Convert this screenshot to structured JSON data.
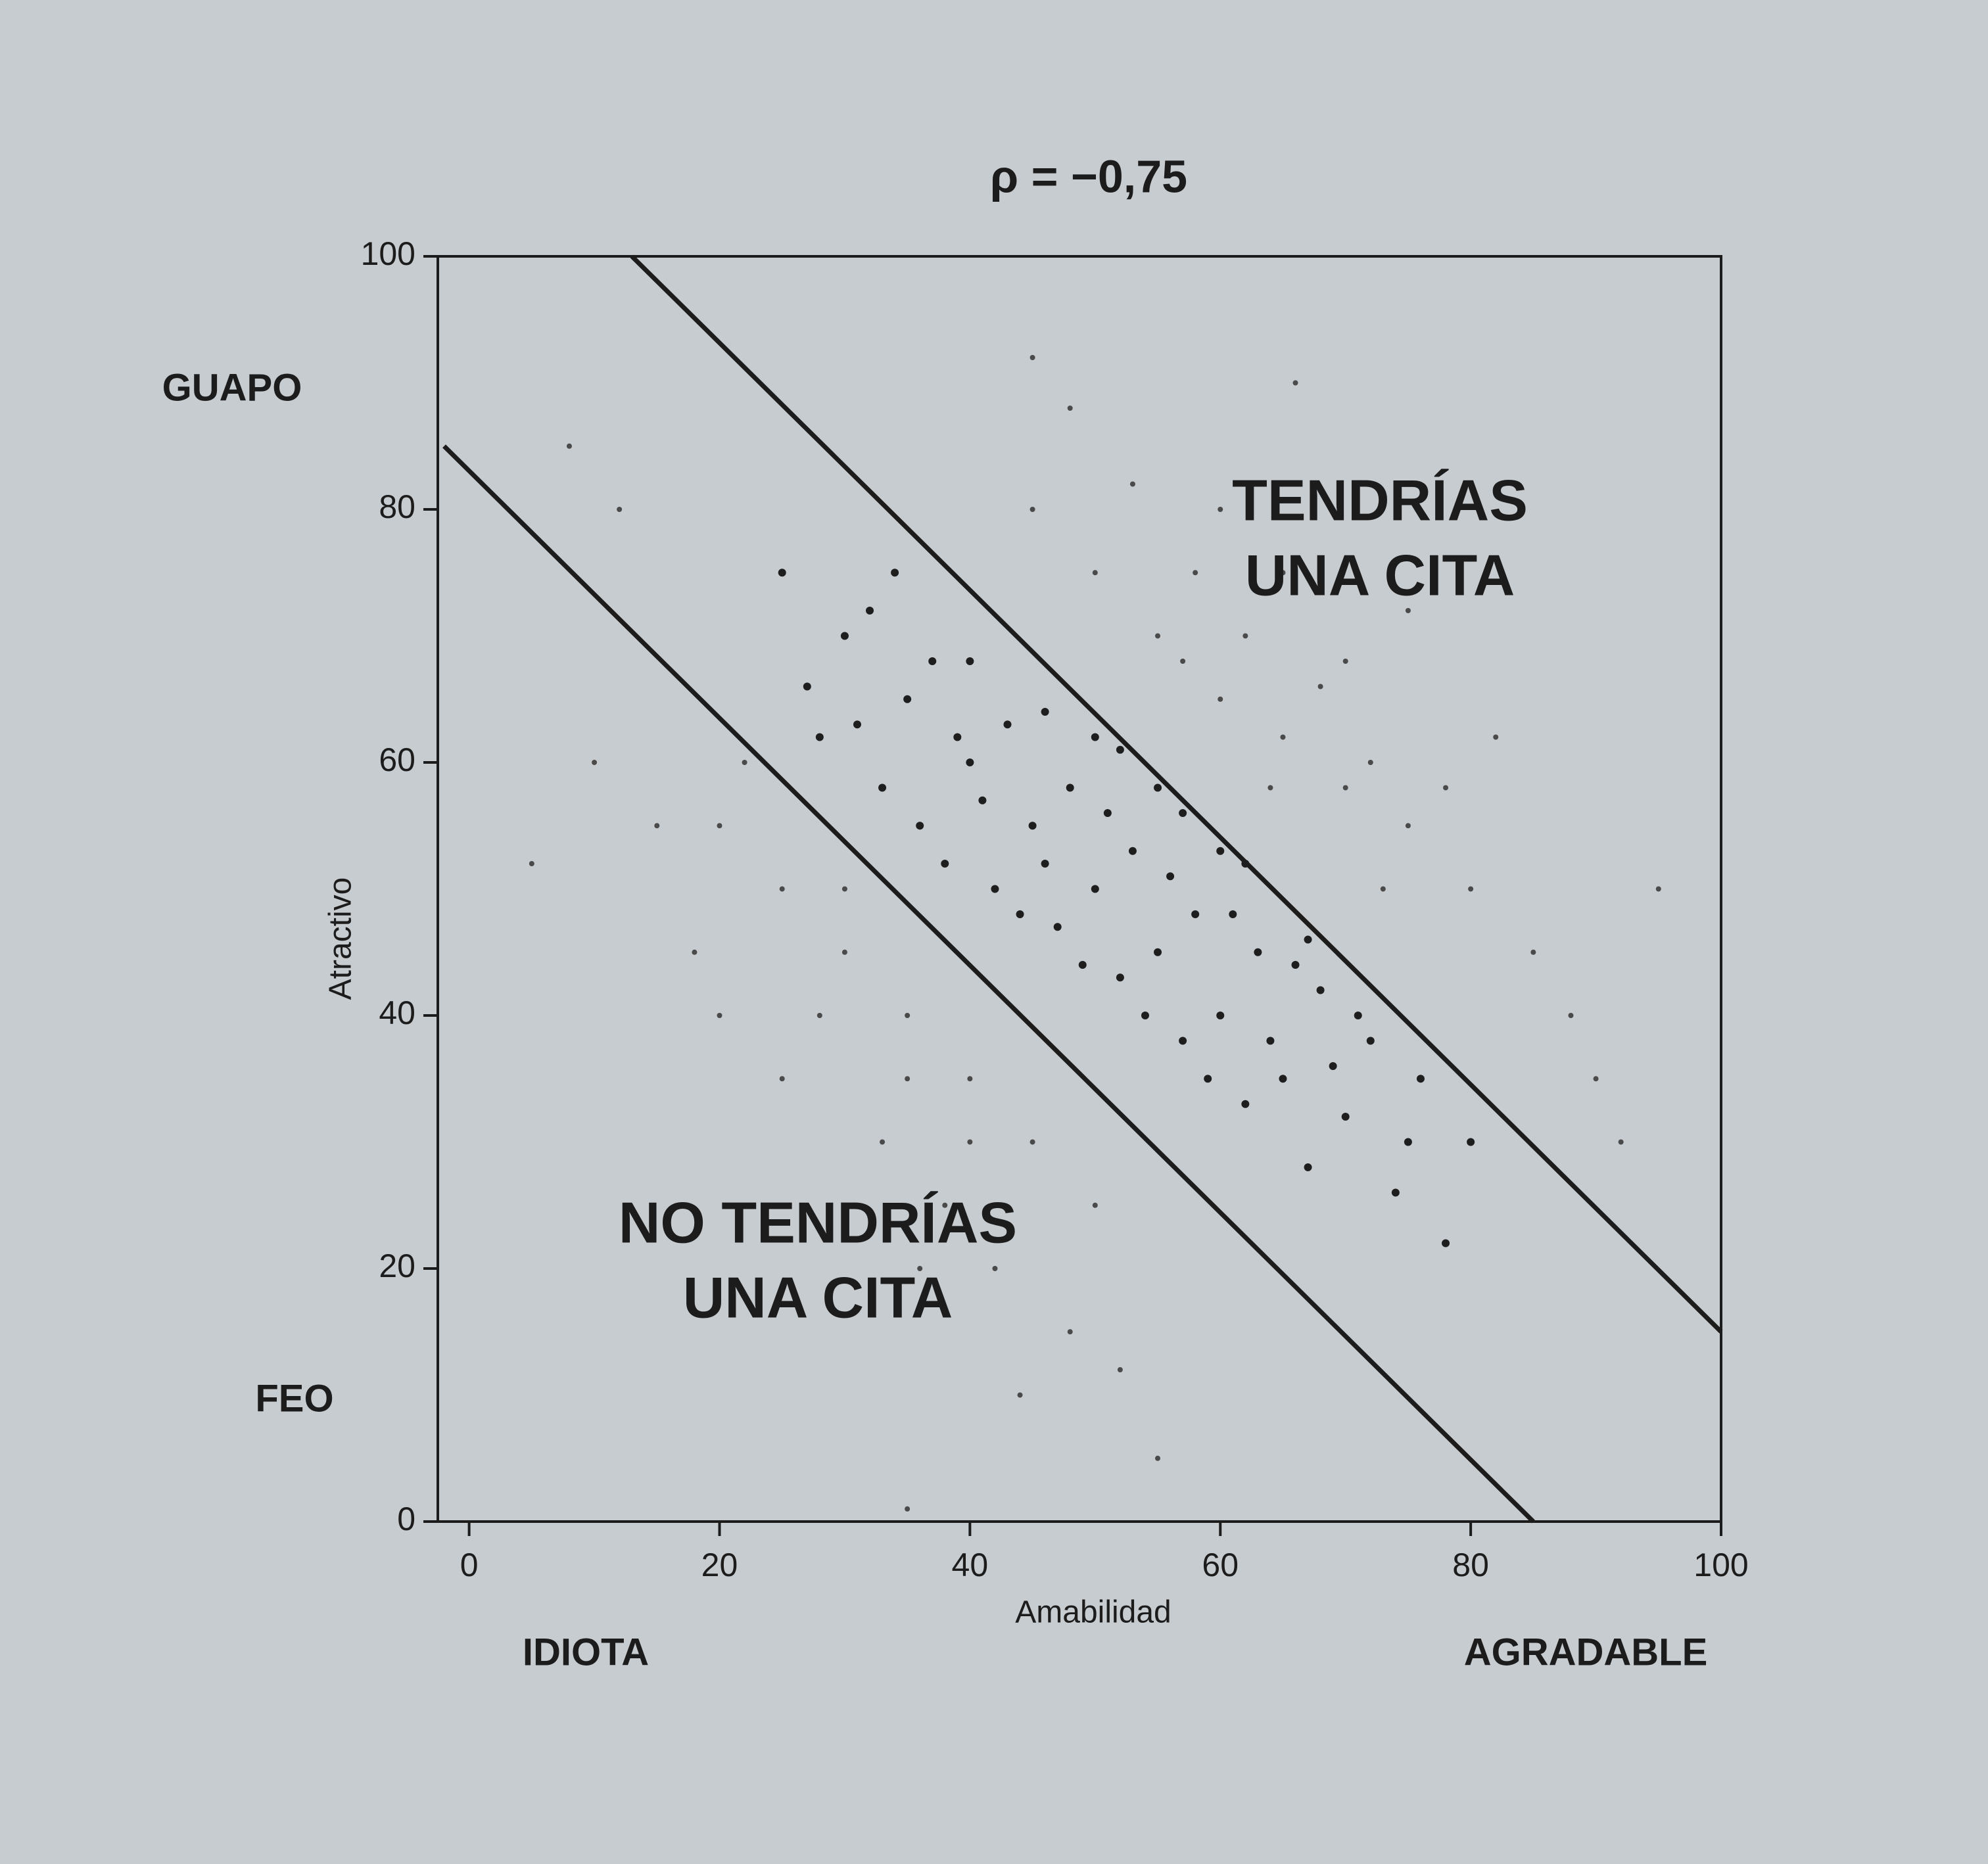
{
  "chart_data": {
    "type": "scatter",
    "title": "ρ = −0,75",
    "x_label": "Amabilidad",
    "y_label": "Atractivo",
    "xlim": [
      -2.5,
      100
    ],
    "ylim": [
      0,
      100
    ],
    "xticks": [
      0,
      20,
      40,
      60,
      80,
      100
    ],
    "yticks": [
      0,
      20,
      40,
      60,
      80,
      100
    ],
    "axis_annotations": {
      "y_high": "GUAPO",
      "y_low": "FEO",
      "x_low": "IDIOTA",
      "x_high": "AGRADABLE"
    },
    "region_labels": [
      [
        "TENDRÍAS",
        "UNA CITA"
      ],
      [
        "NO TENDRÍAS",
        "UNA CITA"
      ]
    ],
    "lines": [
      {
        "x": [
          13,
          100
        ],
        "y": [
          100,
          15
        ]
      },
      {
        "x": [
          -2,
          85
        ],
        "y": [
          85,
          0
        ]
      }
    ],
    "series": [
      {
        "color": "#1e1e1e",
        "x": [
          30,
          35,
          40,
          45,
          50,
          55,
          60,
          65,
          28,
          33,
          38,
          42,
          47,
          52,
          57,
          62,
          67,
          25,
          32,
          37,
          43,
          48,
          53,
          58,
          63,
          68,
          72,
          36,
          41,
          46,
          51,
          56,
          61,
          66,
          70,
          75,
          27,
          31,
          39,
          44,
          49,
          54,
          59,
          64,
          69,
          74,
          78,
          34,
          40,
          46,
          52,
          57,
          62,
          67,
          71,
          76,
          80,
          55,
          60,
          50
        ],
        "values": [
          70,
          65,
          60,
          55,
          50,
          45,
          40,
          35,
          62,
          58,
          52,
          50,
          47,
          43,
          38,
          33,
          28,
          75,
          72,
          68,
          63,
          58,
          53,
          48,
          45,
          42,
          38,
          55,
          57,
          52,
          56,
          51,
          48,
          44,
          32,
          30,
          66,
          63,
          62,
          48,
          44,
          40,
          35,
          38,
          36,
          26,
          22,
          75,
          68,
          64,
          61,
          56,
          52,
          46,
          40,
          35,
          30,
          58,
          53,
          62
        ]
      },
      {
        "color": "#4a4a4a",
        "x": [
          60,
          65,
          70,
          55,
          50,
          45,
          62,
          68,
          72,
          75,
          58,
          53,
          48,
          65,
          70,
          80,
          85,
          78,
          60,
          45,
          88,
          90,
          75,
          82,
          57,
          64,
          73,
          66,
          92,
          95,
          20,
          25,
          30,
          35,
          40,
          45,
          50,
          30,
          35,
          40,
          22,
          28,
          33,
          38,
          42,
          48,
          15,
          10,
          18,
          25,
          30,
          36,
          44,
          52,
          12,
          8,
          5,
          55,
          35,
          20
        ],
        "values": [
          65,
          62,
          58,
          70,
          75,
          80,
          70,
          66,
          60,
          55,
          75,
          82,
          88,
          75,
          68,
          50,
          45,
          58,
          80,
          92,
          40,
          35,
          72,
          62,
          68,
          58,
          50,
          90,
          30,
          50,
          55,
          50,
          45,
          40,
          35,
          30,
          25,
          50,
          35,
          30,
          60,
          40,
          30,
          25,
          20,
          15,
          55,
          60,
          45,
          35,
          25,
          20,
          10,
          12,
          80,
          85,
          52,
          5,
          1,
          40
        ]
      }
    ]
  }
}
